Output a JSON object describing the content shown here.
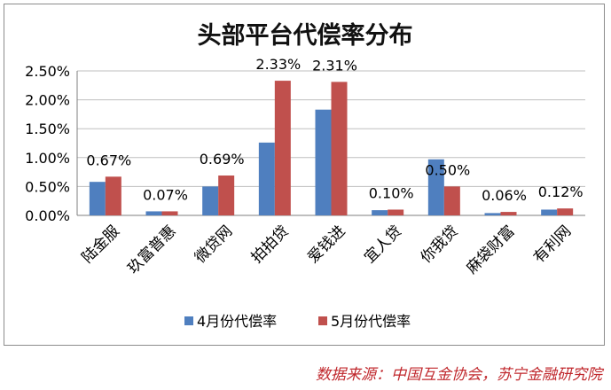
{
  "chart_data": {
    "type": "bar",
    "title": "头部平台代偿率分布",
    "categories": [
      "陆金服",
      "玖富普惠",
      "微贷网",
      "拍拍贷",
      "爱钱进",
      "宜人贷",
      "你我贷",
      "麻袋财富",
      "有利网"
    ],
    "series": [
      {
        "name": "4月份代偿率",
        "color": "#4f7fbf",
        "values": [
          0.58,
          0.07,
          0.5,
          1.26,
          1.83,
          0.09,
          0.97,
          0.04,
          0.1
        ]
      },
      {
        "name": "5月份代偿率",
        "color": "#c0504d",
        "values": [
          0.67,
          0.07,
          0.69,
          2.33,
          2.31,
          0.1,
          0.5,
          0.06,
          0.12
        ]
      }
    ],
    "data_labels": [
      "0.67%",
      "0.07%",
      "0.69%",
      "2.33%",
      "2.31%",
      "0.10%",
      "0.50%",
      "0.06%",
      "0.12%"
    ],
    "ylim": [
      0,
      2.5
    ],
    "yticks": [
      "0.00%",
      "0.50%",
      "1.00%",
      "1.50%",
      "2.00%",
      "2.50%"
    ],
    "grid": true,
    "legend_position": "bottom"
  },
  "source_note": "数据来源：中国互金协会，苏宁金融研究院"
}
